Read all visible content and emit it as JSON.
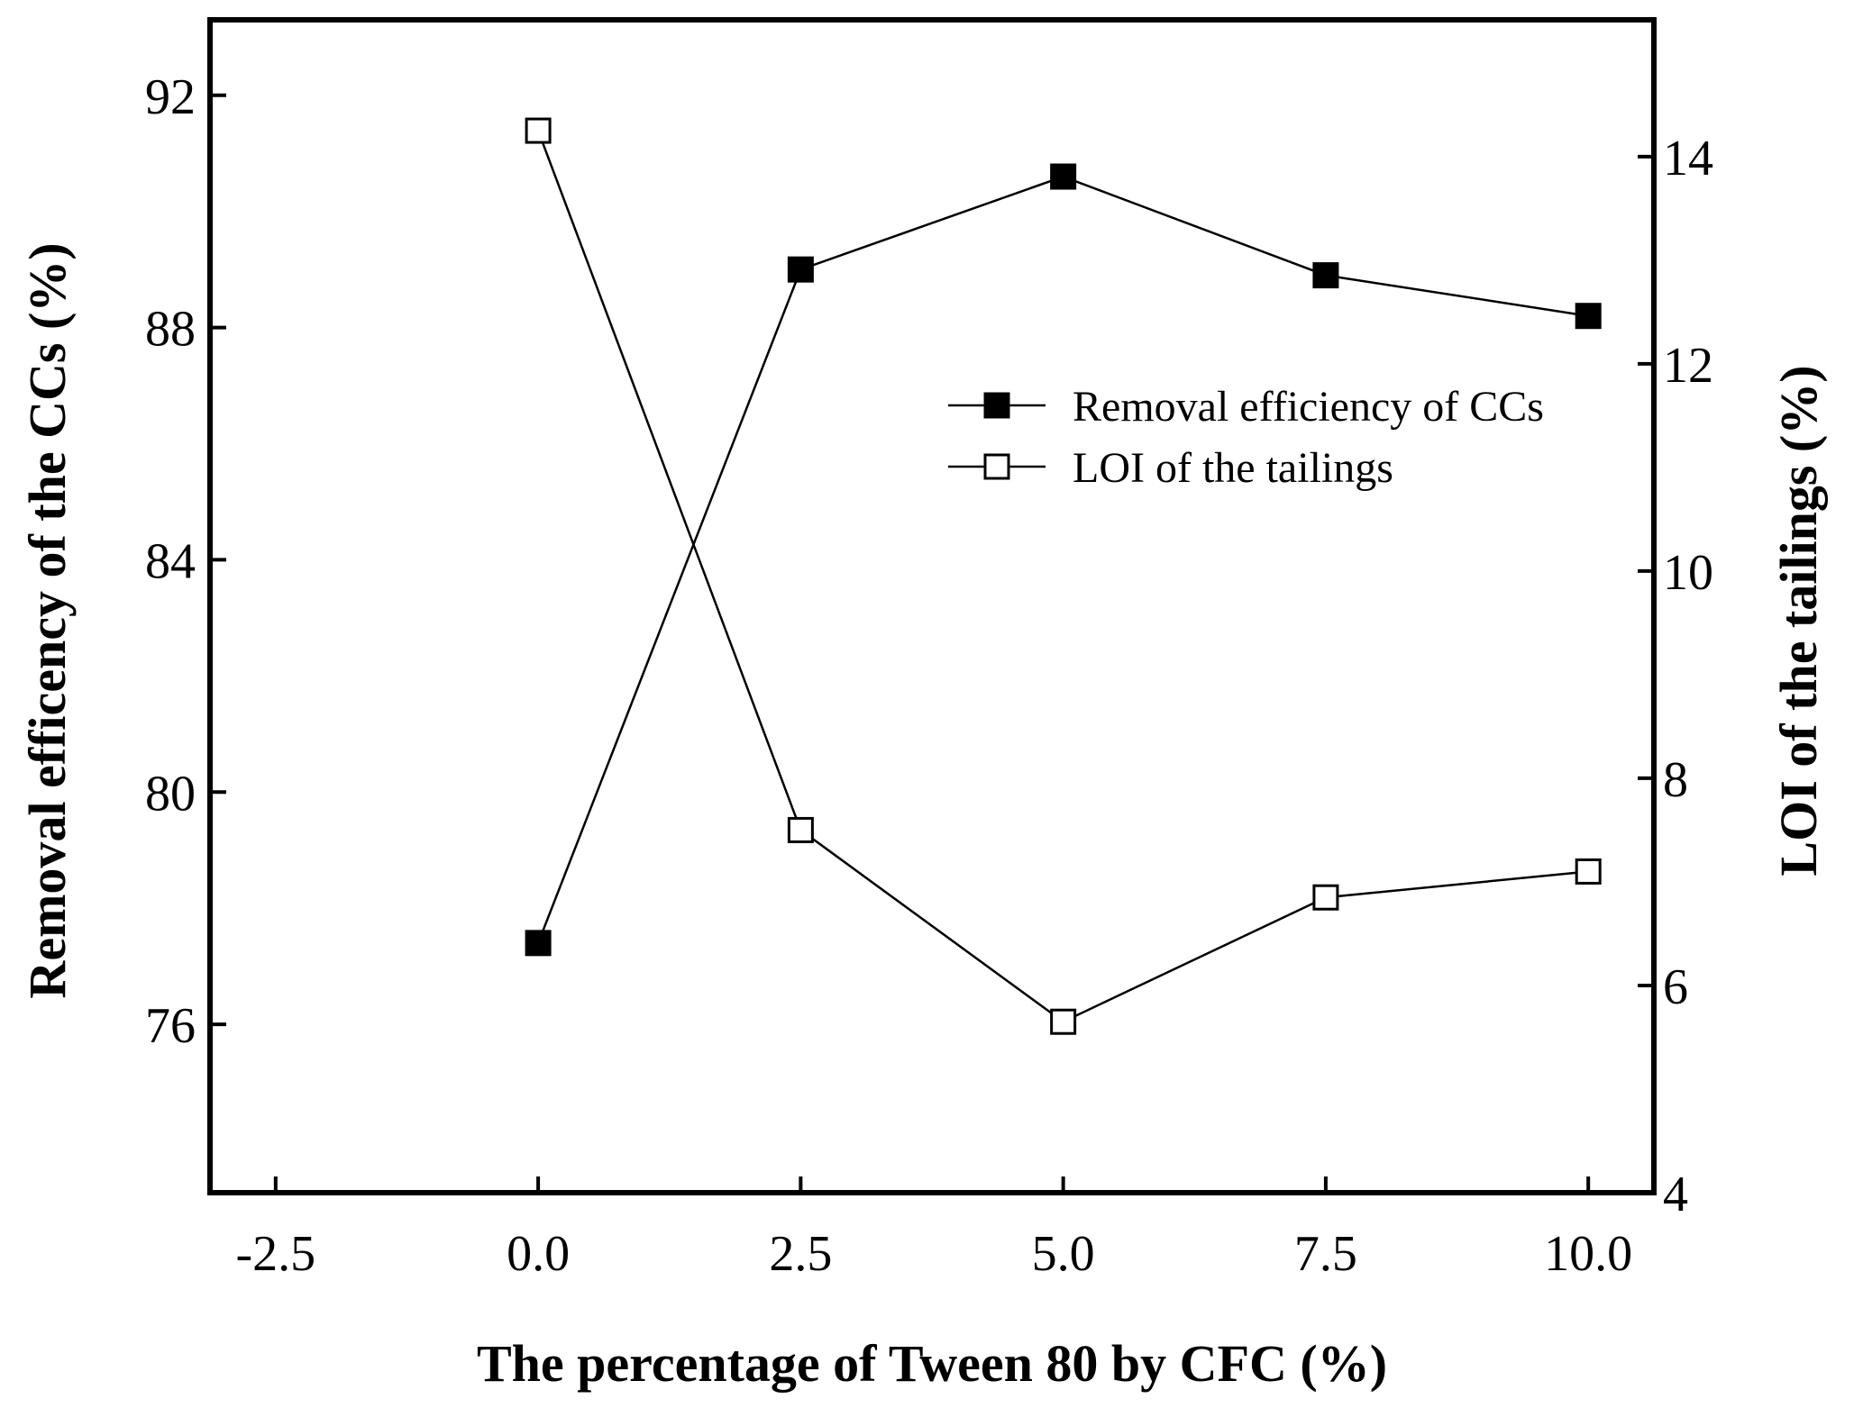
{
  "chart_data": {
    "type": "line",
    "title": "",
    "xlabel": "The percentage of Tween 80 by CFC (%)",
    "ylabel_left": "Removal efficency of the CCs (%)",
    "ylabel_right": "LOI of the tailings (%)",
    "xlim": [
      -3.125,
      10.625
    ],
    "ylim_left": [
      73.1,
      93.3
    ],
    "ylim_right": [
      4,
      15.32
    ],
    "x_ticks": [
      -2.5,
      0.0,
      2.5,
      5.0,
      7.5,
      10.0
    ],
    "x_tick_labels": [
      "-2.5",
      "0.0",
      "2.5",
      "5.0",
      "7.5",
      "10.0"
    ],
    "y_left_ticks": [
      76,
      80,
      84,
      88,
      92
    ],
    "y_left_tick_labels": [
      "76",
      "80",
      "84",
      "88",
      "92"
    ],
    "y_right_ticks": [
      4,
      6,
      8,
      10,
      12,
      14
    ],
    "y_right_tick_labels": [
      "4",
      "6",
      "8",
      "10",
      "12",
      "14"
    ],
    "x": [
      0.0,
      2.5,
      5.0,
      7.5,
      10.0
    ],
    "series": [
      {
        "name": "Removal efficiency of CCs",
        "axis": "left",
        "marker": "filled-square",
        "values": [
          77.4,
          89.0,
          90.6,
          88.9,
          88.2
        ]
      },
      {
        "name": "LOI of the tailings",
        "axis": "right",
        "marker": "open-square",
        "values": [
          14.25,
          7.5,
          5.65,
          6.85,
          7.1
        ]
      }
    ],
    "legend_position": "upper-right"
  },
  "colors": {
    "line": "#000000",
    "background": "#ffffff"
  }
}
